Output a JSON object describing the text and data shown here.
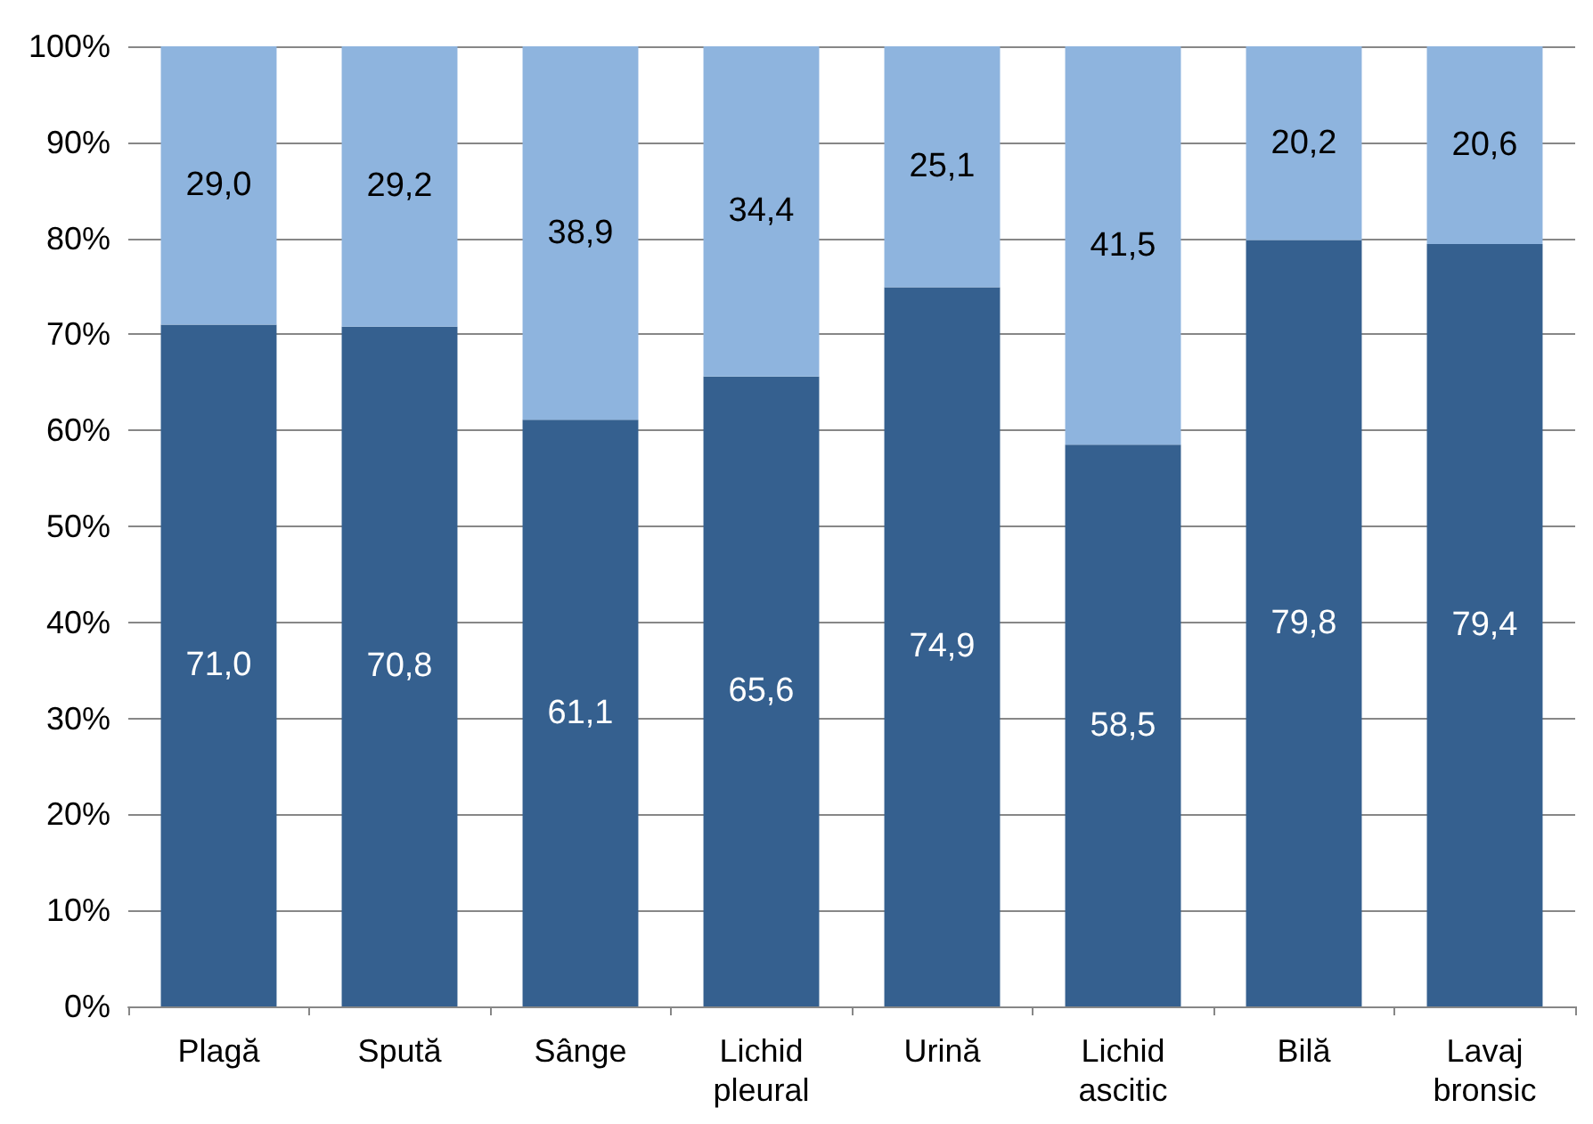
{
  "chart_data": {
    "type": "bar",
    "stacked": true,
    "categories": [
      "Plagă",
      "Spută",
      "Sânge",
      "Lichid pleural",
      "Urină",
      "Lichid ascitic",
      "Bilă",
      "Lavaj bronsic"
    ],
    "series": [
      {
        "color": "#35608f",
        "values": [
          71.0,
          70.8,
          61.1,
          65.6,
          74.9,
          58.5,
          79.8,
          79.4
        ],
        "value_labels": [
          "71,0",
          "70,8",
          "61,1",
          "65,6",
          "74,9",
          "58,5",
          "79,8",
          "79,4"
        ]
      },
      {
        "color": "#8eb4de",
        "values": [
          29.0,
          29.2,
          38.9,
          34.4,
          25.1,
          41.5,
          20.2,
          20.6
        ],
        "value_labels": [
          "29,0",
          "29,2",
          "38,9",
          "34,4",
          "25,1",
          "41,5",
          "20,2",
          "20,6"
        ]
      }
    ],
    "ylim": [
      0,
      100
    ],
    "yticks": [
      {
        "value": 0,
        "label": "0%"
      },
      {
        "value": 10,
        "label": "10%"
      },
      {
        "value": 20,
        "label": "20%"
      },
      {
        "value": 30,
        "label": "30%"
      },
      {
        "value": 40,
        "label": "40%"
      },
      {
        "value": 50,
        "label": "50%"
      },
      {
        "value": 60,
        "label": "60%"
      },
      {
        "value": 70,
        "label": "70%"
      },
      {
        "value": 80,
        "label": "80%"
      },
      {
        "value": 90,
        "label": "90%"
      },
      {
        "value": 100,
        "label": "100%"
      }
    ],
    "grid": "y"
  }
}
